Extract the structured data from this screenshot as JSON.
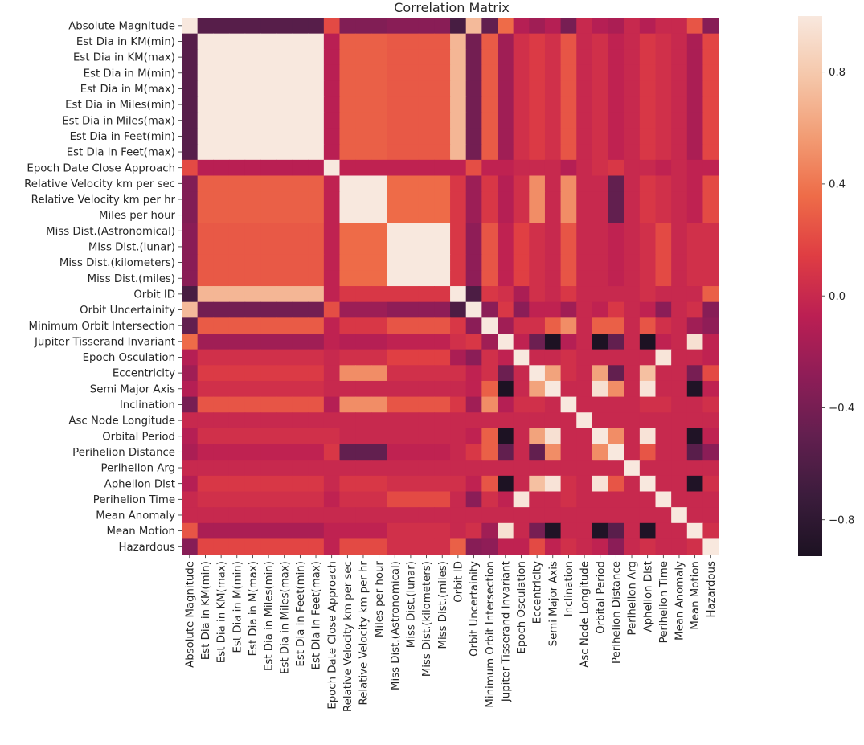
{
  "chart_data": {
    "type": "heatmap",
    "title": "Correlation Matrix",
    "labels": [
      "Absolute Magnitude",
      "Est Dia in KM(min)",
      "Est Dia in KM(max)",
      "Est Dia in M(min)",
      "Est Dia in M(max)",
      "Est Dia in Miles(min)",
      "Est Dia in Miles(max)",
      "Est Dia in Feet(min)",
      "Est Dia in Feet(max)",
      "Epoch Date Close Approach",
      "Relative Velocity km per sec",
      "Relative Velocity km per hr",
      "Miles per hour",
      "Miss Dist.(Astronomical)",
      "Miss Dist.(lunar)",
      "Miss Dist.(kilometers)",
      "Miss Dist.(miles)",
      "Orbit ID",
      "Orbit Uncertainity",
      "Minimum Orbit Intersection",
      "Jupiter Tisserand Invariant",
      "Epoch Osculation",
      "Eccentricity",
      "Semi Major Axis",
      "Inclination",
      "Asc Node Longitude",
      "Orbital Period",
      "Perihelion Distance",
      "Perihelion Arg",
      "Aphelion Dist",
      "Perihelion Time",
      "Mean Anomaly",
      "Mean Motion",
      "Hazardous"
    ],
    "colorbar": {
      "vmin": -0.93,
      "vmax": 1.0,
      "ticks": [
        -0.8,
        -0.4,
        0.0,
        0.4,
        0.8
      ],
      "tick_labels": [
        "−0.8",
        "−0.4",
        "0.0",
        "0.4",
        "0.8"
      ],
      "colormap": "rocket",
      "stops": [
        "#1c1222",
        "#3b1c3c",
        "#621f4f",
        "#8e1d57",
        "#bb1f53",
        "#df3d43",
        "#ee6c48",
        "#f29d75",
        "#f5c7aa",
        "#f8e8de"
      ]
    },
    "matrix": [
      [
        1.0,
        -0.56,
        -0.56,
        -0.56,
        -0.56,
        -0.56,
        -0.56,
        -0.56,
        -0.56,
        0.2,
        -0.35,
        -0.35,
        -0.35,
        -0.31,
        -0.31,
        -0.31,
        -0.31,
        -0.65,
        0.72,
        -0.5,
        0.35,
        -0.1,
        -0.2,
        -0.1,
        -0.4,
        0.0,
        -0.1,
        -0.15,
        0.0,
        -0.1,
        0.0,
        0.0,
        0.25,
        -0.32
      ],
      [
        -0.56,
        1.0,
        1.0,
        1.0,
        1.0,
        1.0,
        1.0,
        1.0,
        1.0,
        -0.08,
        0.3,
        0.3,
        0.3,
        0.27,
        0.27,
        0.27,
        0.27,
        0.7,
        -0.42,
        0.28,
        -0.2,
        0.05,
        0.12,
        0.05,
        0.25,
        0.0,
        0.05,
        -0.05,
        0.0,
        0.1,
        0.05,
        0.0,
        -0.15,
        0.18
      ],
      [
        -0.56,
        1.0,
        1.0,
        1.0,
        1.0,
        1.0,
        1.0,
        1.0,
        1.0,
        -0.08,
        0.3,
        0.3,
        0.3,
        0.27,
        0.27,
        0.27,
        0.27,
        0.7,
        -0.42,
        0.28,
        -0.2,
        0.05,
        0.12,
        0.05,
        0.25,
        0.0,
        0.05,
        -0.05,
        0.0,
        0.1,
        0.05,
        0.0,
        -0.15,
        0.18
      ],
      [
        -0.56,
        1.0,
        1.0,
        1.0,
        1.0,
        1.0,
        1.0,
        1.0,
        1.0,
        -0.08,
        0.3,
        0.3,
        0.3,
        0.27,
        0.27,
        0.27,
        0.27,
        0.7,
        -0.42,
        0.28,
        -0.2,
        0.05,
        0.12,
        0.05,
        0.25,
        0.0,
        0.05,
        -0.05,
        0.0,
        0.1,
        0.05,
        0.0,
        -0.15,
        0.18
      ],
      [
        -0.56,
        1.0,
        1.0,
        1.0,
        1.0,
        1.0,
        1.0,
        1.0,
        1.0,
        -0.08,
        0.3,
        0.3,
        0.3,
        0.27,
        0.27,
        0.27,
        0.27,
        0.7,
        -0.42,
        0.28,
        -0.2,
        0.05,
        0.12,
        0.05,
        0.25,
        0.0,
        0.05,
        -0.05,
        0.0,
        0.1,
        0.05,
        0.0,
        -0.15,
        0.18
      ],
      [
        -0.56,
        1.0,
        1.0,
        1.0,
        1.0,
        1.0,
        1.0,
        1.0,
        1.0,
        -0.08,
        0.3,
        0.3,
        0.3,
        0.27,
        0.27,
        0.27,
        0.27,
        0.7,
        -0.42,
        0.28,
        -0.2,
        0.05,
        0.12,
        0.05,
        0.25,
        0.0,
        0.05,
        -0.05,
        0.0,
        0.1,
        0.05,
        0.0,
        -0.15,
        0.18
      ],
      [
        -0.56,
        1.0,
        1.0,
        1.0,
        1.0,
        1.0,
        1.0,
        1.0,
        1.0,
        -0.08,
        0.3,
        0.3,
        0.3,
        0.27,
        0.27,
        0.27,
        0.27,
        0.7,
        -0.42,
        0.28,
        -0.2,
        0.05,
        0.12,
        0.05,
        0.25,
        0.0,
        0.05,
        -0.05,
        0.0,
        0.1,
        0.05,
        0.0,
        -0.15,
        0.18
      ],
      [
        -0.56,
        1.0,
        1.0,
        1.0,
        1.0,
        1.0,
        1.0,
        1.0,
        1.0,
        -0.08,
        0.3,
        0.3,
        0.3,
        0.27,
        0.27,
        0.27,
        0.27,
        0.7,
        -0.42,
        0.28,
        -0.2,
        0.05,
        0.12,
        0.05,
        0.25,
        0.0,
        0.05,
        -0.05,
        0.0,
        0.1,
        0.05,
        0.0,
        -0.15,
        0.18
      ],
      [
        -0.56,
        1.0,
        1.0,
        1.0,
        1.0,
        1.0,
        1.0,
        1.0,
        1.0,
        -0.08,
        0.3,
        0.3,
        0.3,
        0.27,
        0.27,
        0.27,
        0.27,
        0.7,
        -0.42,
        0.28,
        -0.2,
        0.05,
        0.12,
        0.05,
        0.25,
        0.0,
        0.05,
        -0.05,
        0.0,
        0.1,
        0.05,
        0.0,
        -0.15,
        0.18
      ],
      [
        0.2,
        -0.08,
        -0.08,
        -0.08,
        -0.08,
        -0.08,
        -0.08,
        -0.08,
        -0.08,
        1.0,
        -0.05,
        -0.05,
        -0.05,
        -0.05,
        -0.05,
        -0.05,
        -0.05,
        -0.05,
        0.22,
        -0.05,
        -0.05,
        0.0,
        0.0,
        0.0,
        -0.1,
        0.0,
        0.05,
        0.1,
        0.0,
        0.0,
        -0.05,
        0.0,
        -0.05,
        -0.05
      ],
      [
        -0.35,
        0.3,
        0.3,
        0.3,
        0.3,
        0.3,
        0.3,
        0.3,
        0.3,
        -0.05,
        1.0,
        1.0,
        1.0,
        0.35,
        0.35,
        0.35,
        0.35,
        0.1,
        -0.22,
        0.1,
        -0.1,
        0.05,
        0.5,
        0.0,
        0.5,
        0.0,
        0.0,
        -0.5,
        0.0,
        0.1,
        0.05,
        0.0,
        -0.05,
        0.2
      ],
      [
        -0.35,
        0.3,
        0.3,
        0.3,
        0.3,
        0.3,
        0.3,
        0.3,
        0.3,
        -0.05,
        1.0,
        1.0,
        1.0,
        0.35,
        0.35,
        0.35,
        0.35,
        0.1,
        -0.22,
        0.1,
        -0.1,
        0.05,
        0.5,
        0.0,
        0.5,
        0.0,
        0.0,
        -0.5,
        0.0,
        0.1,
        0.05,
        0.0,
        -0.05,
        0.2
      ],
      [
        -0.35,
        0.3,
        0.3,
        0.3,
        0.3,
        0.3,
        0.3,
        0.3,
        0.3,
        -0.05,
        1.0,
        1.0,
        1.0,
        0.35,
        0.35,
        0.35,
        0.35,
        0.1,
        -0.22,
        0.1,
        -0.1,
        0.05,
        0.5,
        0.0,
        0.5,
        0.0,
        0.0,
        -0.5,
        0.0,
        0.1,
        0.05,
        0.0,
        -0.05,
        0.2
      ],
      [
        -0.31,
        0.27,
        0.27,
        0.27,
        0.27,
        0.27,
        0.27,
        0.27,
        0.27,
        -0.05,
        0.35,
        0.35,
        0.35,
        1.0,
        1.0,
        1.0,
        1.0,
        0.1,
        -0.28,
        0.25,
        -0.05,
        0.15,
        0.05,
        0.0,
        0.25,
        0.0,
        0.0,
        -0.05,
        0.0,
        0.05,
        0.2,
        0.0,
        0.05,
        0.05
      ],
      [
        -0.31,
        0.27,
        0.27,
        0.27,
        0.27,
        0.27,
        0.27,
        0.27,
        0.27,
        -0.05,
        0.35,
        0.35,
        0.35,
        1.0,
        1.0,
        1.0,
        1.0,
        0.1,
        -0.28,
        0.25,
        -0.05,
        0.15,
        0.05,
        0.0,
        0.25,
        0.0,
        0.0,
        -0.05,
        0.0,
        0.05,
        0.2,
        0.0,
        0.05,
        0.05
      ],
      [
        -0.31,
        0.27,
        0.27,
        0.27,
        0.27,
        0.27,
        0.27,
        0.27,
        0.27,
        -0.05,
        0.35,
        0.35,
        0.35,
        1.0,
        1.0,
        1.0,
        1.0,
        0.1,
        -0.28,
        0.25,
        -0.05,
        0.15,
        0.05,
        0.0,
        0.25,
        0.0,
        0.0,
        -0.05,
        0.0,
        0.05,
        0.2,
        0.0,
        0.05,
        0.05
      ],
      [
        -0.31,
        0.27,
        0.27,
        0.27,
        0.27,
        0.27,
        0.27,
        0.27,
        0.27,
        -0.05,
        0.35,
        0.35,
        0.35,
        1.0,
        1.0,
        1.0,
        1.0,
        0.1,
        -0.28,
        0.25,
        -0.05,
        0.15,
        0.05,
        0.0,
        0.25,
        0.0,
        0.0,
        -0.05,
        0.0,
        0.05,
        0.2,
        0.0,
        0.05,
        0.05
      ],
      [
        -0.65,
        0.7,
        0.7,
        0.7,
        0.7,
        0.7,
        0.7,
        0.7,
        0.7,
        -0.05,
        0.1,
        0.1,
        0.1,
        0.1,
        0.1,
        0.1,
        0.1,
        1.0,
        -0.62,
        0.1,
        0.05,
        -0.15,
        0.05,
        0.0,
        0.1,
        0.0,
        0.0,
        0.0,
        0.0,
        0.05,
        0.0,
        0.0,
        0.0,
        0.3
      ],
      [
        0.72,
        -0.42,
        -0.42,
        -0.42,
        -0.42,
        -0.42,
        -0.42,
        -0.42,
        -0.42,
        0.22,
        -0.22,
        -0.22,
        -0.22,
        -0.28,
        -0.28,
        -0.28,
        -0.28,
        -0.62,
        1.0,
        -0.3,
        0.1,
        -0.3,
        -0.05,
        -0.05,
        -0.2,
        0.0,
        -0.05,
        0.1,
        0.0,
        -0.05,
        -0.3,
        0.0,
        0.05,
        -0.32
      ],
      [
        -0.5,
        0.28,
        0.28,
        0.28,
        0.28,
        0.28,
        0.28,
        0.28,
        0.28,
        -0.05,
        0.1,
        0.1,
        0.1,
        0.25,
        0.25,
        0.25,
        0.25,
        0.1,
        -0.3,
        1.0,
        -0.2,
        0.05,
        0.05,
        0.3,
        0.5,
        0.0,
        0.3,
        0.3,
        0.0,
        0.25,
        0.05,
        0.0,
        -0.2,
        -0.28
      ],
      [
        0.35,
        -0.2,
        -0.2,
        -0.2,
        -0.2,
        -0.2,
        -0.2,
        -0.2,
        -0.2,
        -0.05,
        -0.1,
        -0.1,
        -0.1,
        -0.05,
        -0.05,
        -0.05,
        -0.05,
        0.05,
        0.1,
        -0.2,
        1.0,
        -0.05,
        -0.45,
        -0.92,
        -0.1,
        0.0,
        -0.92,
        -0.5,
        0.0,
        -0.92,
        -0.05,
        0.0,
        0.95,
        -0.05
      ],
      [
        -0.1,
        0.05,
        0.05,
        0.05,
        0.05,
        0.05,
        0.05,
        0.05,
        0.05,
        0.0,
        0.05,
        0.05,
        0.05,
        0.15,
        0.15,
        0.15,
        0.15,
        -0.15,
        -0.3,
        0.05,
        -0.05,
        1.0,
        0.0,
        0.0,
        0.05,
        0.0,
        0.0,
        0.0,
        0.0,
        0.0,
        0.98,
        0.0,
        0.0,
        -0.05
      ],
      [
        -0.2,
        0.12,
        0.12,
        0.12,
        0.12,
        0.12,
        0.12,
        0.12,
        0.12,
        0.0,
        0.5,
        0.5,
        0.5,
        0.05,
        0.05,
        0.05,
        0.05,
        0.05,
        -0.05,
        0.05,
        -0.45,
        0.0,
        1.0,
        0.6,
        0.05,
        0.0,
        0.6,
        -0.5,
        0.0,
        0.75,
        0.0,
        0.0,
        -0.4,
        0.2
      ],
      [
        -0.1,
        0.05,
        0.05,
        0.05,
        0.05,
        0.05,
        0.05,
        0.05,
        0.05,
        0.0,
        0.0,
        0.0,
        0.0,
        0.0,
        0.0,
        0.0,
        0.0,
        0.0,
        -0.05,
        0.3,
        -0.92,
        0.0,
        0.6,
        1.0,
        0.0,
        0.0,
        0.95,
        0.5,
        0.0,
        0.97,
        0.0,
        0.0,
        -0.9,
        -0.05
      ],
      [
        -0.4,
        0.25,
        0.25,
        0.25,
        0.25,
        0.25,
        0.25,
        0.25,
        0.25,
        -0.1,
        0.5,
        0.5,
        0.5,
        0.25,
        0.25,
        0.25,
        0.25,
        0.1,
        -0.2,
        0.5,
        -0.1,
        0.05,
        0.05,
        0.0,
        1.0,
        0.0,
        0.0,
        0.0,
        0.0,
        0.05,
        0.05,
        0.0,
        0.0,
        0.05
      ],
      [
        0.0,
        0.0,
        0.0,
        0.0,
        0.0,
        0.0,
        0.0,
        0.0,
        0.0,
        0.0,
        0.0,
        0.0,
        0.0,
        0.0,
        0.0,
        0.0,
        0.0,
        0.0,
        0.0,
        0.0,
        0.0,
        0.0,
        0.0,
        0.0,
        0.0,
        1.0,
        0.0,
        0.0,
        0.0,
        0.0,
        0.0,
        0.0,
        0.0,
        0.0
      ],
      [
        -0.1,
        0.05,
        0.05,
        0.05,
        0.05,
        0.05,
        0.05,
        0.05,
        0.05,
        0.05,
        0.0,
        0.0,
        0.0,
        0.0,
        0.0,
        0.0,
        0.0,
        0.0,
        -0.05,
        0.3,
        -0.92,
        0.0,
        0.6,
        0.95,
        0.0,
        0.0,
        1.0,
        0.5,
        0.0,
        0.97,
        0.0,
        0.0,
        -0.9,
        -0.05
      ],
      [
        -0.15,
        -0.05,
        -0.05,
        -0.05,
        -0.05,
        -0.05,
        -0.05,
        -0.05,
        -0.05,
        0.1,
        -0.5,
        -0.5,
        -0.5,
        -0.05,
        -0.05,
        -0.05,
        -0.05,
        0.0,
        0.1,
        0.3,
        -0.5,
        0.0,
        -0.5,
        0.5,
        0.0,
        0.0,
        0.5,
        1.0,
        0.0,
        0.25,
        0.0,
        0.0,
        -0.55,
        -0.3
      ],
      [
        0.0,
        0.0,
        0.0,
        0.0,
        0.0,
        0.0,
        0.0,
        0.0,
        0.0,
        0.0,
        0.0,
        0.0,
        0.0,
        0.0,
        0.0,
        0.0,
        0.0,
        0.0,
        0.0,
        0.0,
        0.0,
        0.0,
        0.0,
        0.0,
        0.0,
        0.0,
        0.0,
        0.0,
        1.0,
        0.0,
        0.0,
        0.0,
        0.0,
        0.0
      ],
      [
        -0.1,
        0.1,
        0.1,
        0.1,
        0.1,
        0.1,
        0.1,
        0.1,
        0.1,
        0.0,
        0.1,
        0.1,
        0.1,
        0.05,
        0.05,
        0.05,
        0.05,
        0.05,
        -0.05,
        0.25,
        -0.92,
        0.0,
        0.75,
        0.97,
        0.05,
        0.0,
        0.97,
        0.25,
        0.0,
        1.0,
        0.0,
        0.0,
        -0.9,
        0.05
      ],
      [
        0.0,
        0.05,
        0.05,
        0.05,
        0.05,
        0.05,
        0.05,
        0.05,
        0.05,
        -0.05,
        0.05,
        0.05,
        0.05,
        0.2,
        0.2,
        0.2,
        0.2,
        0.0,
        -0.3,
        0.05,
        -0.05,
        0.98,
        0.0,
        0.0,
        0.05,
        0.0,
        0.0,
        0.0,
        0.0,
        0.0,
        1.0,
        0.0,
        0.0,
        0.0
      ],
      [
        0.0,
        0.0,
        0.0,
        0.0,
        0.0,
        0.0,
        0.0,
        0.0,
        0.0,
        0.0,
        0.0,
        0.0,
        0.0,
        0.0,
        0.0,
        0.0,
        0.0,
        0.0,
        0.0,
        0.0,
        0.0,
        0.0,
        0.0,
        0.0,
        0.0,
        0.0,
        0.0,
        0.0,
        0.0,
        0.0,
        0.0,
        1.0,
        0.0,
        0.0
      ],
      [
        0.25,
        -0.15,
        -0.15,
        -0.15,
        -0.15,
        -0.15,
        -0.15,
        -0.15,
        -0.15,
        -0.05,
        -0.05,
        -0.05,
        -0.05,
        0.05,
        0.05,
        0.05,
        0.05,
        0.0,
        0.05,
        -0.2,
        0.95,
        0.0,
        -0.4,
        -0.9,
        0.0,
        0.0,
        -0.9,
        -0.55,
        0.0,
        -0.9,
        0.0,
        0.0,
        1.0,
        0.05
      ],
      [
        -0.32,
        0.18,
        0.18,
        0.18,
        0.18,
        0.18,
        0.18,
        0.18,
        0.18,
        -0.05,
        0.2,
        0.2,
        0.2,
        0.05,
        0.05,
        0.05,
        0.05,
        0.3,
        -0.32,
        -0.28,
        -0.05,
        -0.05,
        0.2,
        -0.05,
        0.05,
        0.0,
        -0.05,
        -0.3,
        0.0,
        0.05,
        0.0,
        0.0,
        0.05,
        1.0
      ]
    ]
  }
}
